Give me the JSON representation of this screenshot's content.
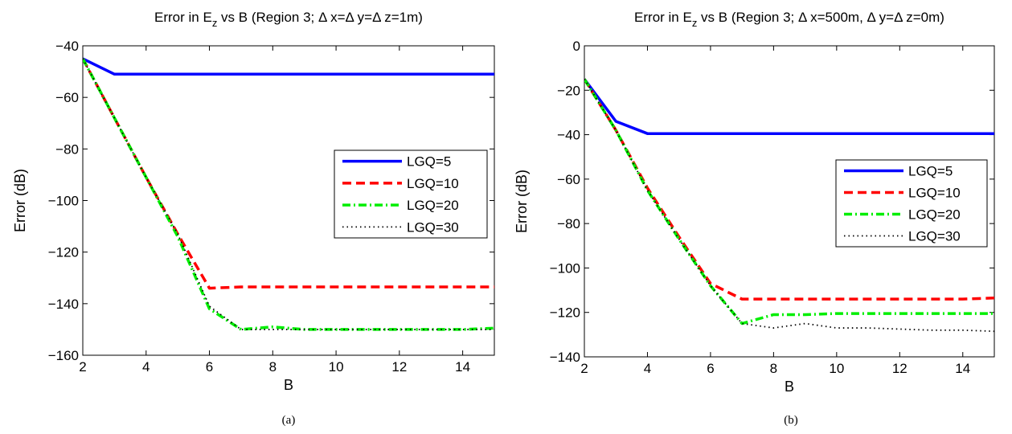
{
  "chart_data": [
    {
      "type": "line",
      "panel": "(a)",
      "title_prefix": "Error in E",
      "title_sub": "z",
      "title_suffix": " vs B (Region 3; Δ x=Δ y=Δ z=1m)",
      "xlabel": "B",
      "ylabel": "Error (dB)",
      "xlim": [
        2,
        15
      ],
      "ylim": [
        -160,
        -40
      ],
      "xticks": [
        2,
        4,
        6,
        8,
        10,
        12,
        14
      ],
      "yticks": [
        -160,
        -140,
        -120,
        -100,
        -80,
        -60,
        -40
      ],
      "legend_position": "right",
      "x": [
        2,
        3,
        4,
        5,
        6,
        7,
        8,
        9,
        10,
        11,
        12,
        13,
        14,
        15
      ],
      "series": [
        {
          "name": "LGQ=5",
          "style": "solid",
          "color": "#0000ff",
          "values": [
            -45,
            -51,
            -51,
            -51,
            -51,
            -51,
            -51,
            -51,
            -51,
            -51,
            -51,
            -51,
            -51,
            -51
          ]
        },
        {
          "name": "LGQ=10",
          "style": "dashed",
          "color": "#ff0000",
          "values": [
            -45,
            -68,
            -91,
            -113,
            -134,
            -133.5,
            -133.5,
            -133.5,
            -133.5,
            -133.5,
            -133.5,
            -133.5,
            -133.5,
            -133.5
          ]
        },
        {
          "name": "LGQ=20",
          "style": "dashdot",
          "color": "#00ee00",
          "values": [
            -45,
            -68,
            -91,
            -114,
            -142,
            -150,
            -149,
            -150,
            -150,
            -150,
            -150,
            -150,
            -150,
            -149.5
          ]
        },
        {
          "name": "LGQ=30",
          "style": "dotted",
          "color": "#000000",
          "values": [
            -45,
            -68,
            -91,
            -113,
            -141,
            -150,
            -150,
            -150,
            -150,
            -150,
            -150,
            -150,
            -150,
            -150
          ]
        }
      ]
    },
    {
      "type": "line",
      "panel": "(b)",
      "title_prefix": "Error in E",
      "title_sub": "z",
      "title_suffix": " vs B (Region 3; Δ x=500m, Δ y=Δ z=0m)",
      "xlabel": "B",
      "ylabel": "Error (dB)",
      "xlim": [
        2,
        15
      ],
      "ylim": [
        -140,
        0
      ],
      "xticks": [
        2,
        4,
        6,
        8,
        10,
        12,
        14
      ],
      "yticks": [
        -140,
        -120,
        -100,
        -80,
        -60,
        -40,
        -20,
        0
      ],
      "legend_position": "right",
      "x": [
        2,
        3,
        4,
        5,
        6,
        7,
        8,
        9,
        10,
        11,
        12,
        13,
        14,
        15
      ],
      "series": [
        {
          "name": "LGQ=5",
          "style": "solid",
          "color": "#0000ff",
          "values": [
            -15,
            -34,
            -39.5,
            -39.5,
            -39.5,
            -39.5,
            -39.5,
            -39.5,
            -39.5,
            -39.5,
            -39.5,
            -39.5,
            -39.5,
            -39.5
          ]
        },
        {
          "name": "LGQ=10",
          "style": "dashed",
          "color": "#ff0000",
          "values": [
            -15,
            -38,
            -64,
            -86,
            -107,
            -114,
            -114,
            -114,
            -114,
            -114,
            -114,
            -114,
            -114,
            -113.5
          ]
        },
        {
          "name": "LGQ=20",
          "style": "dashdot",
          "color": "#00ee00",
          "values": [
            -15,
            -38,
            -65,
            -87,
            -108,
            -125,
            -121,
            -121,
            -120.5,
            -120.5,
            -120.5,
            -120.5,
            -120.5,
            -120.5
          ]
        },
        {
          "name": "LGQ=30",
          "style": "dotted",
          "color": "#000000",
          "values": [
            -15,
            -38,
            -65,
            -87,
            -108,
            -125,
            -127,
            -125,
            -127,
            -127,
            -127.5,
            -128,
            -128,
            -128.5
          ]
        }
      ]
    }
  ]
}
